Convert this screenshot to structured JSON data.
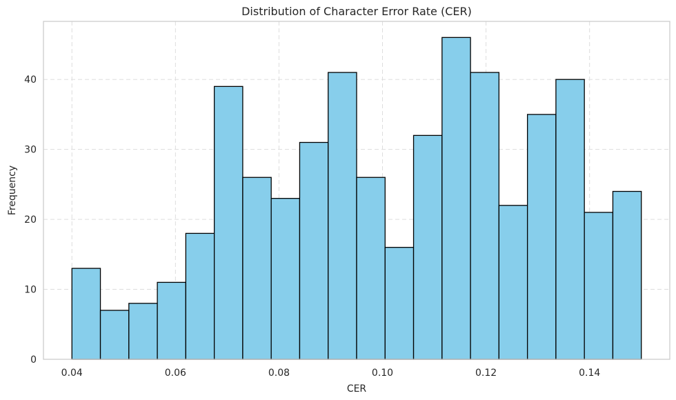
{
  "chart_data": {
    "type": "bar",
    "subtype": "histogram",
    "title": "Distribution of Character Error Rate (CER)",
    "xlabel": "CER",
    "ylabel": "Frequency",
    "bin_range": [
      0.04,
      0.15
    ],
    "bins": 20,
    "values": [
      13,
      7,
      8,
      11,
      18,
      39,
      26,
      23,
      31,
      41,
      26,
      16,
      32,
      46,
      41,
      22,
      35,
      40,
      21,
      24
    ],
    "xlim": [
      0.0345,
      0.1555
    ],
    "ylim": [
      0,
      48.3
    ],
    "xticks": [
      "0.04",
      "0.06",
      "0.08",
      "0.10",
      "0.12",
      "0.14"
    ],
    "xtick_values": [
      0.04,
      0.06,
      0.08,
      0.1,
      0.12,
      0.14
    ],
    "yticks": [
      "0",
      "10",
      "20",
      "30",
      "40"
    ],
    "ytick_values": [
      0,
      10,
      20,
      30,
      40
    ],
    "grid": true,
    "bar_color": "#87ceeb",
    "edge_color": "#000000"
  }
}
